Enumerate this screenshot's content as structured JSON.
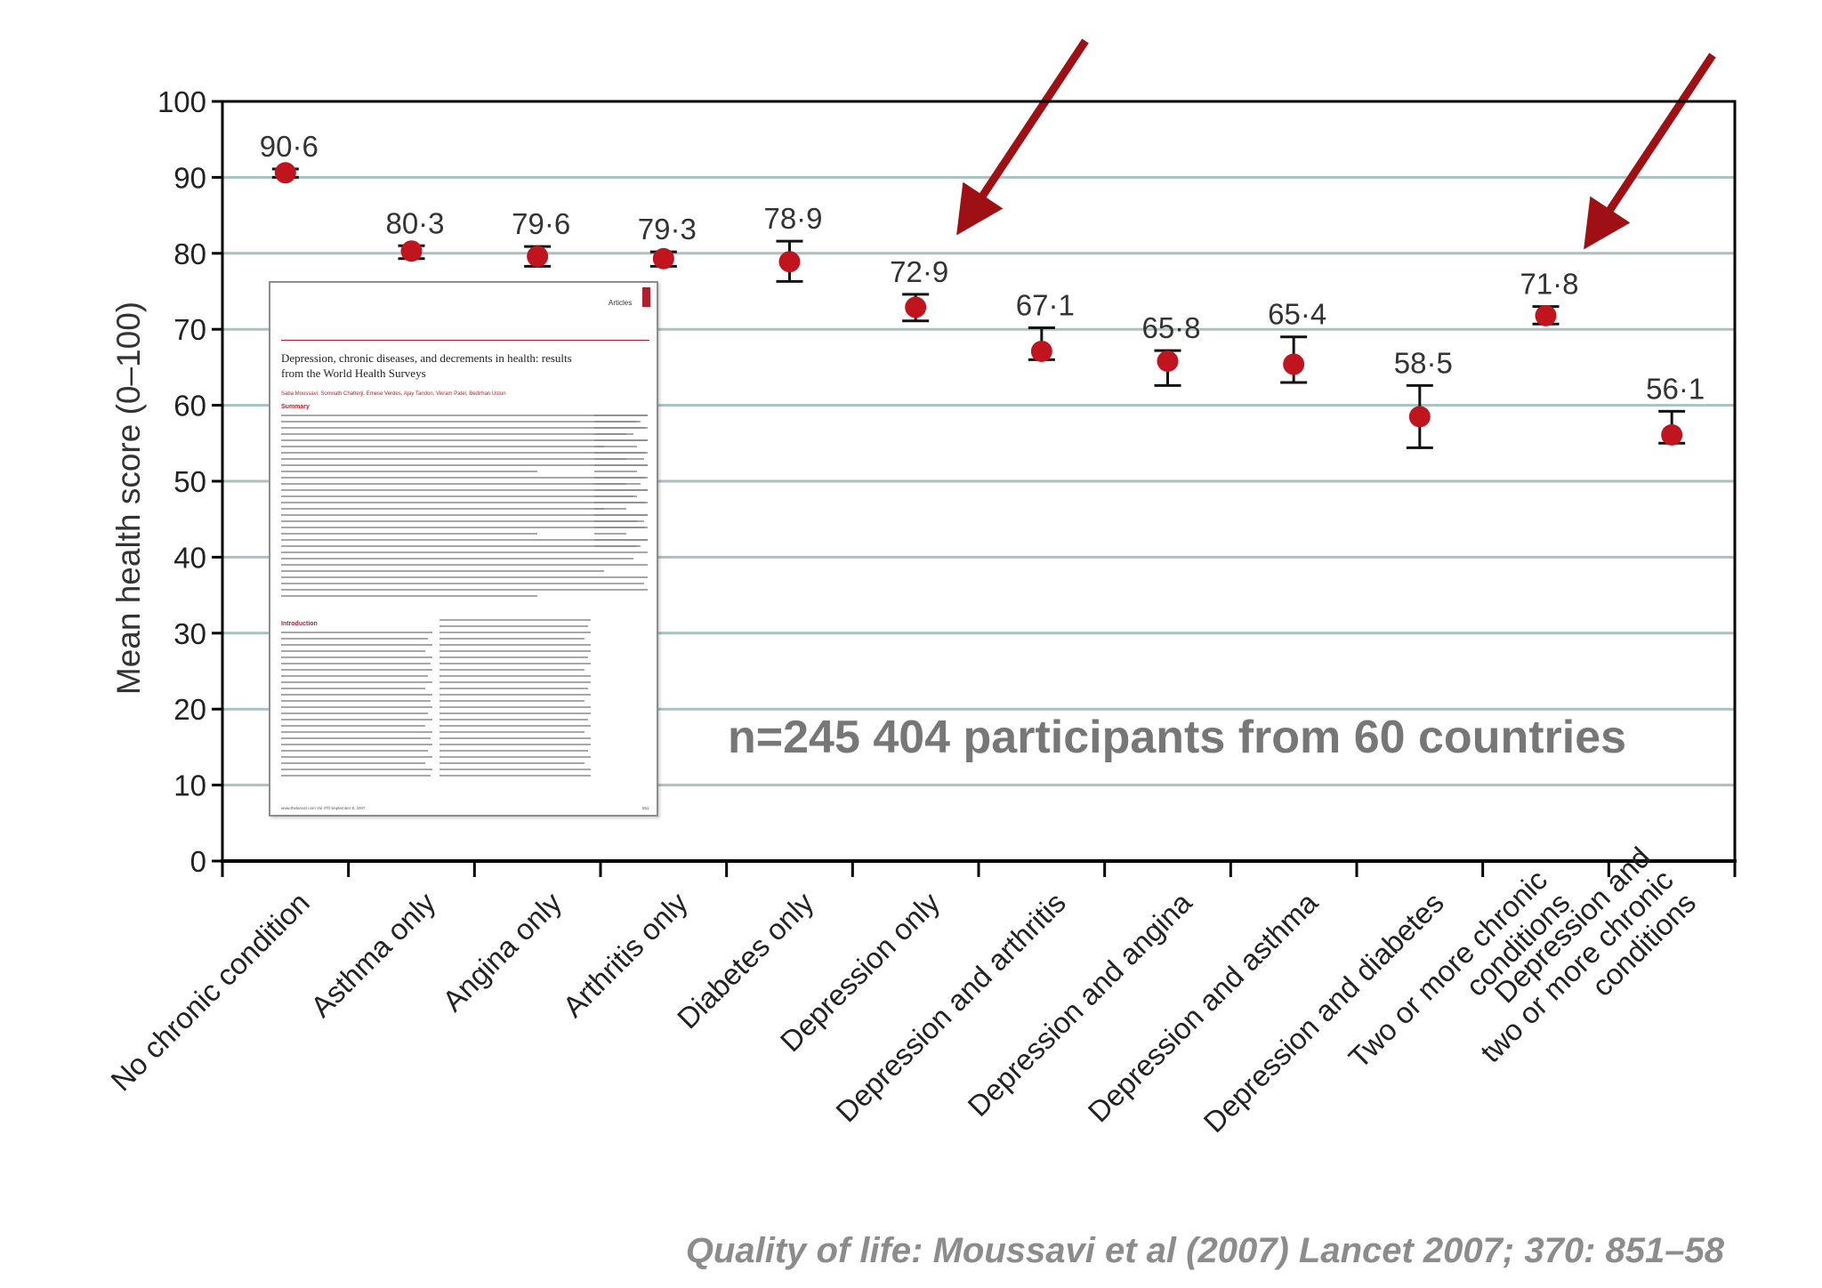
{
  "chart_data": {
    "type": "scatter",
    "ylabel": "Mean health score (0–100)",
    "xlabel": "",
    "ylim": [
      0,
      100
    ],
    "yticks": [
      0,
      10,
      20,
      30,
      40,
      50,
      60,
      70,
      80,
      90,
      100
    ],
    "grid": true,
    "categories": [
      [
        "No chronic condition"
      ],
      [
        "Asthma only"
      ],
      [
        "Angina only"
      ],
      [
        "Arthritis only"
      ],
      [
        "Diabetes only"
      ],
      [
        "Depression only"
      ],
      [
        "Depression and arthritis"
      ],
      [
        "Depression and angina"
      ],
      [
        "Depression and asthma"
      ],
      [
        "Depression and diabetes"
      ],
      [
        "Two or more chronic",
        "conditions"
      ],
      [
        "Depression and",
        "two or more chronic",
        "conditions"
      ]
    ],
    "values": [
      90.6,
      80.3,
      79.6,
      79.3,
      78.9,
      72.9,
      67.1,
      65.8,
      65.4,
      58.5,
      71.8,
      56.1
    ],
    "value_labels": [
      "90·6",
      "80·3",
      "79·6",
      "79·3",
      "78·9",
      "72·9",
      "67·1",
      "65·8",
      "65·4",
      "58·5",
      "71·8",
      "56·1"
    ],
    "ci_low": [
      90.0,
      79.3,
      78.3,
      78.3,
      76.3,
      71.1,
      66.0,
      62.6,
      63.0,
      54.4,
      70.7,
      55.0
    ],
    "ci_high": [
      91.1,
      81.0,
      80.9,
      80.2,
      81.6,
      74.6,
      70.2,
      67.2,
      69.0,
      62.6,
      73.0,
      59.2
    ],
    "colors": {
      "point": "#c0141e",
      "error_bar": "#111111",
      "grid": "#a9c1c1",
      "arrow": "#9e1014",
      "axis": "#000000",
      "tick_label": "#222222"
    },
    "annotations": {
      "arrows": [
        {
          "points_to": "Depression only"
        },
        {
          "points_to": "Two or more chronic conditions"
        }
      ]
    }
  },
  "inset": {
    "section": "Articles",
    "title": "Depression, chronic diseases, and decrements in health: results from the World Health Surveys",
    "authors": "Saba Moussavi, Somnath Chatterji, Emese Verdes, Ajay Tandon, Vikram Patel, Bedirhan Ustun",
    "summary_heading": "Summary",
    "introduction_heading": "Introduction",
    "footer": "www.thelancet.com Vol 370 September 8, 2007",
    "page": "851"
  },
  "participants_text": "n=245 404 participants from 60 countries",
  "citation": "Quality of life: Moussavi et al (2007) Lancet 2007; 370: 851–58"
}
